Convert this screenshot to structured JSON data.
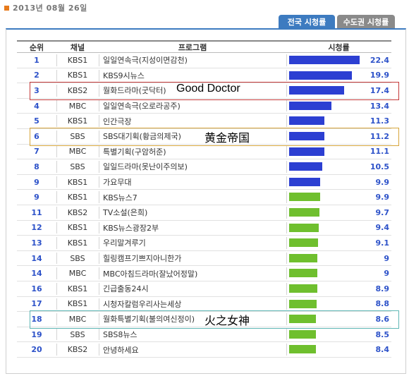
{
  "date": "2013년 08월 26일",
  "tabs": {
    "national": "전국 시청률",
    "capital": "수도권 시청률"
  },
  "header": {
    "rank": "순위",
    "channel": "채널",
    "program": "프로그램",
    "rating": "시청률"
  },
  "colors": {
    "blue_bar": "#2c3fd2",
    "green_bar": "#6fbf2e",
    "tab_active": "#3d7bc0",
    "tab_inactive": "#8a8a8a",
    "rank_text": "#2d52c9"
  },
  "highlights": [
    {
      "row": 3,
      "text": "Good Doctor",
      "color": "#c43a3a"
    },
    {
      "row": 6,
      "text": "黄金帝国",
      "color": "#d6a53b"
    },
    {
      "row": 18,
      "text": "火之女神",
      "color": "#5fb7b5"
    }
  ],
  "chart_data": {
    "type": "bar",
    "rows": [
      {
        "rank": "1",
        "channel": "KBS1",
        "program": "일일연속극(지성이면감천)",
        "rating": "22.4",
        "value": 22.4,
        "color": "blue"
      },
      {
        "rank": "2",
        "channel": "KBS1",
        "program": "KBS9시뉴스",
        "rating": "19.9",
        "value": 19.9,
        "color": "blue"
      },
      {
        "rank": "3",
        "channel": "KBS2",
        "program": "월화드라마(굿닥터)",
        "rating": "17.4",
        "value": 17.4,
        "color": "blue"
      },
      {
        "rank": "4",
        "channel": "MBC",
        "program": "일일연속극(오로라공주)",
        "rating": "13.4",
        "value": 13.4,
        "color": "blue"
      },
      {
        "rank": "5",
        "channel": "KBS1",
        "program": "인간극장",
        "rating": "11.3",
        "value": 11.3,
        "color": "blue"
      },
      {
        "rank": "6",
        "channel": "SBS",
        "program": "SBS대기획(황금의제국)",
        "rating": "11.2",
        "value": 11.2,
        "color": "blue"
      },
      {
        "rank": "7",
        "channel": "MBC",
        "program": "특별기획(구암허준)",
        "rating": "11.1",
        "value": 11.1,
        "color": "blue"
      },
      {
        "rank": "8",
        "channel": "SBS",
        "program": "일일드라마(못난이주의보)",
        "rating": "10.5",
        "value": 10.5,
        "color": "blue"
      },
      {
        "rank": "9",
        "channel": "KBS1",
        "program": "가요무대",
        "rating": "9.9",
        "value": 9.9,
        "color": "blue"
      },
      {
        "rank": "9",
        "channel": "KBS1",
        "program": "KBS뉴스7",
        "rating": "9.9",
        "value": 9.9,
        "color": "green"
      },
      {
        "rank": "11",
        "channel": "KBS2",
        "program": "TV소설(은희)",
        "rating": "9.7",
        "value": 9.7,
        "color": "green"
      },
      {
        "rank": "12",
        "channel": "KBS1",
        "program": "KBS뉴스광장2부",
        "rating": "9.4",
        "value": 9.4,
        "color": "green"
      },
      {
        "rank": "13",
        "channel": "KBS1",
        "program": "우리말겨루기",
        "rating": "9.1",
        "value": 9.1,
        "color": "green"
      },
      {
        "rank": "14",
        "channel": "SBS",
        "program": "힐링캠프기쁘지아니한가",
        "rating": "9",
        "value": 9,
        "color": "green"
      },
      {
        "rank": "14",
        "channel": "MBC",
        "program": "MBC아침드라마(잘났어정말)",
        "rating": "9",
        "value": 9,
        "color": "green"
      },
      {
        "rank": "16",
        "channel": "KBS1",
        "program": "긴급출동24시",
        "rating": "8.9",
        "value": 8.9,
        "color": "green"
      },
      {
        "rank": "17",
        "channel": "KBS1",
        "program": "시청자칼럼우리사는세상",
        "rating": "8.8",
        "value": 8.8,
        "color": "green"
      },
      {
        "rank": "18",
        "channel": "MBC",
        "program": "월화특별기획(불의여신정이)",
        "rating": "8.6",
        "value": 8.6,
        "color": "green"
      },
      {
        "rank": "19",
        "channel": "SBS",
        "program": "SBS8뉴스",
        "rating": "8.5",
        "value": 8.5,
        "color": "green"
      },
      {
        "rank": "20",
        "channel": "KBS2",
        "program": "안녕하세요",
        "rating": "8.4",
        "value": 8.4,
        "color": "green"
      }
    ]
  }
}
